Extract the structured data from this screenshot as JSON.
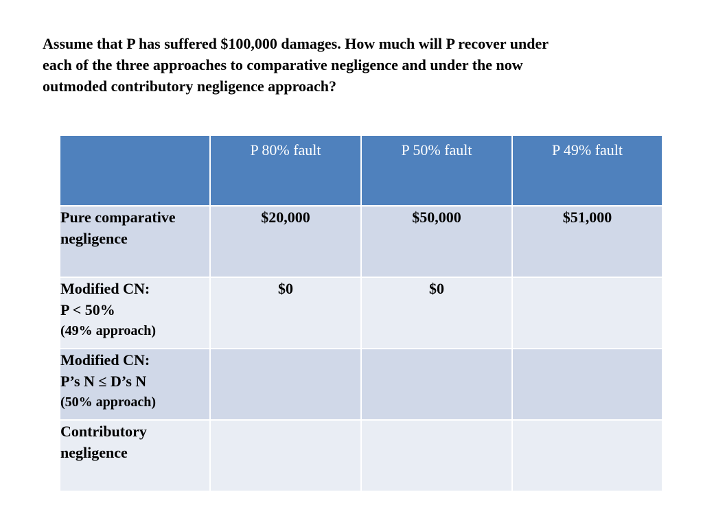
{
  "question": {
    "lines": [
      "Assume that P has suffered $100,000 damages.  How much will P recover under",
      "each of the three approaches to comparative negligence and under the now",
      "outmoded contributory negligence approach?"
    ]
  },
  "table": {
    "header": [
      "",
      "P 80% fault",
      "P 50% fault",
      "P 49% fault"
    ],
    "rows": [
      {
        "label": [
          "Pure comparative",
          "negligence"
        ],
        "values": [
          "$20,000",
          "$50,000",
          "$51,000"
        ]
      },
      {
        "label": [
          "Modified CN:",
          "P < 50%",
          "(49% approach)"
        ],
        "values": [
          "$0",
          "$0",
          ""
        ]
      },
      {
        "label": [
          "Modified CN:",
          "P’s N ≤ D’s N",
          "(50% approach)"
        ],
        "values": [
          "",
          "",
          ""
        ]
      },
      {
        "label": [
          "Contributory",
          "negligence"
        ],
        "values": [
          "",
          "",
          ""
        ]
      }
    ]
  },
  "colors": {
    "header_bg": "#4f81bd",
    "row_odd_bg": "#d0d8e8",
    "row_even_bg": "#e9edf4"
  }
}
